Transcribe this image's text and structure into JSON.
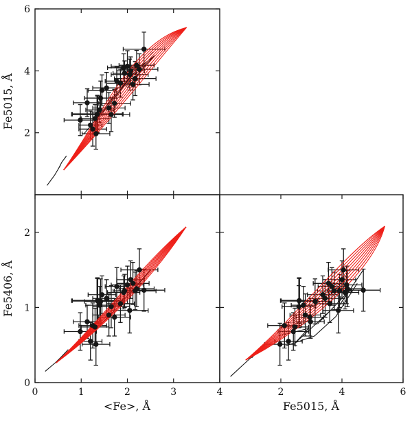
{
  "figure": {
    "background": "#ffffff",
    "marker_color": "#161616",
    "errorbar_color": "#1c1c1c",
    "model_red_color": "#ee2019",
    "model_black_color": "#161616",
    "axis_color": "#1a1a1a"
  },
  "chart_data": {
    "type": "scatter",
    "title": "",
    "description": "Triangle of index-index diagrams: Fe5015 vs <Fe>, Fe5406 vs <Fe>, Fe5406 vs Fe5015. Black filled circles with x/y error bars are measured objects; red curve bundle is the SSP model grid, thin black polylines are a second model track set.",
    "panels": [
      {
        "key": "tl",
        "x_field": "fe",
        "y_field": "fe5015",
        "xlabel": "",
        "ylabel": "Fe5015, Å",
        "xlim": [
          0,
          4
        ],
        "ylim": [
          0,
          6
        ],
        "xticks": [
          1,
          2,
          3
        ],
        "xtick_labels": [],
        "yticks": [
          2,
          4,
          6
        ],
        "ytick_labels": [
          "2",
          "4",
          "6"
        ]
      },
      {
        "key": "bl",
        "x_field": "fe",
        "y_field": "fe5406",
        "xlabel": "<Fe>, Å",
        "ylabel": "Fe5406, Å",
        "xlim": [
          0,
          4
        ],
        "ylim": [
          0,
          2.5
        ],
        "xticks": [
          0,
          1,
          2,
          3,
          4
        ],
        "xtick_labels": [
          "0",
          "1",
          "2",
          "3",
          "4"
        ],
        "yticks": [
          0,
          1,
          2
        ],
        "ytick_labels": [
          "0",
          "1",
          "2"
        ]
      },
      {
        "key": "br",
        "x_field": "fe5015",
        "y_field": "fe5406",
        "xlabel": "Fe5015, Å",
        "ylabel": "",
        "xlim": [
          0,
          6
        ],
        "ylim": [
          0,
          2.5
        ],
        "xticks": [
          2,
          4,
          6
        ],
        "xtick_labels": [
          "2",
          "4",
          "6"
        ],
        "yticks": [
          1,
          2
        ],
        "ytick_labels": []
      }
    ],
    "points": [
      {
        "fe": 2.36,
        "e_fe": 0.45,
        "fe5015": 4.7,
        "e_fe5015": 0.55,
        "fe5406": 1.23,
        "e_fe5406": 0.28
      },
      {
        "fe": 1.92,
        "e_fe": 0.35,
        "fe5015": 4.1,
        "e_fe5015": 0.45,
        "fe5406": 1.2,
        "e_fe5406": 0.22
      },
      {
        "fe": 2.26,
        "e_fe": 0.4,
        "fe5015": 4.05,
        "e_fe5015": 0.5,
        "fe5406": 1.5,
        "e_fe5406": 0.28
      },
      {
        "fe": 2.07,
        "e_fe": 0.3,
        "fe5015": 4.0,
        "e_fe5015": 0.45,
        "fe5406": 1.37,
        "e_fe5406": 0.25
      },
      {
        "fe": 1.94,
        "e_fe": 0.25,
        "fe5015": 3.92,
        "e_fe5015": 0.4,
        "fe5406": 1.22,
        "e_fe5406": 0.22
      },
      {
        "fe": 2.17,
        "e_fe": 0.45,
        "fe5015": 3.75,
        "e_fe5015": 0.55,
        "fe5406": 1.22,
        "e_fe5406": 0.25
      },
      {
        "fe": 1.77,
        "e_fe": 0.25,
        "fe5015": 3.67,
        "e_fe5015": 0.45,
        "fe5406": 1.28,
        "e_fe5406": 0.25
      },
      {
        "fe": 2.12,
        "e_fe": 0.35,
        "fe5015": 3.56,
        "e_fe5015": 0.5,
        "fe5406": 1.32,
        "e_fe5406": 0.28
      },
      {
        "fe": 2.05,
        "e_fe": 0.4,
        "fe5015": 3.88,
        "e_fe5015": 0.5,
        "fe5406": 0.96,
        "e_fe5406": 0.3
      },
      {
        "fe": 1.45,
        "e_fe": 0.3,
        "fe5015": 3.37,
        "e_fe5015": 0.5,
        "fe5406": 1.17,
        "e_fe5406": 0.25
      },
      {
        "fe": 1.42,
        "e_fe": 0.35,
        "fe5015": 3.12,
        "e_fe5015": 0.55,
        "fe5406": 1.08,
        "e_fe5406": 0.3
      },
      {
        "fe": 1.13,
        "e_fe": 0.3,
        "fe5015": 2.97,
        "e_fe5015": 0.45,
        "fe5406": 0.81,
        "e_fe5406": 0.22
      },
      {
        "fe": 1.4,
        "e_fe": 0.3,
        "fe5015": 2.74,
        "e_fe5015": 0.4,
        "fe5406": 1.03,
        "e_fe5406": 0.25
      },
      {
        "fe": 1.65,
        "e_fe": 0.4,
        "fe5015": 2.59,
        "e_fe5015": 0.55,
        "fe5406": 1.01,
        "e_fe5406": 0.28
      },
      {
        "fe": 1.3,
        "e_fe": 0.3,
        "fe5015": 2.46,
        "e_fe5015": 0.45,
        "fe5406": 0.74,
        "e_fe5406": 0.25
      },
      {
        "fe": 0.98,
        "e_fe": 0.35,
        "fe5015": 2.41,
        "e_fe5015": 0.5,
        "fe5406": 0.68,
        "e_fe5406": 0.25
      },
      {
        "fe": 1.25,
        "e_fe": 0.3,
        "fe5015": 2.12,
        "e_fe5015": 0.55,
        "fe5406": 0.76,
        "e_fe5406": 0.3
      },
      {
        "fe": 1.32,
        "e_fe": 0.3,
        "fe5015": 1.97,
        "e_fe5015": 0.5,
        "fe5406": 0.51,
        "e_fe5406": 0.28
      },
      {
        "fe": 1.72,
        "e_fe": 0.35,
        "fe5015": 2.95,
        "e_fe5015": 0.45,
        "fe5406": 0.87,
        "e_fe5406": 0.25
      },
      {
        "fe": 1.35,
        "e_fe": 0.55,
        "fe5015": 2.6,
        "e_fe5015": 0.6,
        "fe5406": 1.09,
        "e_fe5406": 0.3,
        "bold": true
      },
      {
        "fe": 1.55,
        "e_fe": 0.3,
        "fe5015": 3.45,
        "e_fe5015": 0.5,
        "fe5406": 1.12,
        "e_fe5406": 0.25
      },
      {
        "fe": 1.85,
        "e_fe": 0.3,
        "fe5015": 3.6,
        "e_fe5015": 0.45,
        "fe5406": 1.05,
        "e_fe5406": 0.25
      },
      {
        "fe": 2.0,
        "e_fe": 0.35,
        "fe5015": 4.15,
        "e_fe5015": 0.5,
        "fe5406": 1.3,
        "e_fe5406": 0.25
      },
      {
        "fe": 1.2,
        "e_fe": 0.25,
        "fe5015": 2.25,
        "e_fe5015": 0.45,
        "fe5406": 0.55,
        "e_fe5406": 0.25
      },
      {
        "fe": 1.6,
        "e_fe": 0.35,
        "fe5015": 2.8,
        "e_fe5015": 0.5,
        "fe5406": 0.9,
        "e_fe5406": 0.28
      },
      {
        "fe": 2.2,
        "e_fe": 0.38,
        "fe5015": 4.18,
        "e_fe5015": 0.48,
        "fe5406": 1.25,
        "e_fe5406": 0.24
      }
    ],
    "model_grid": {
      "red_bundle": {
        "tl": {
          "count": 9,
          "p0": [
            0.62,
            0.8
          ],
          "c1_from": [
            1.42,
            2.5
          ],
          "c1_to": [
            1.58,
            2.3
          ],
          "c2_from": [
            2.12,
            4.98
          ],
          "c2_to": [
            2.7,
            4.4
          ],
          "p2": [
            3.28,
            5.4
          ]
        },
        "bl": {
          "count": 9,
          "p0": [
            0.45,
            0.26
          ],
          "c1_from": [
            1.45,
            0.84
          ],
          "c1_to": [
            1.55,
            0.76
          ],
          "c2_from": [
            2.33,
            1.58
          ],
          "c2_to": [
            2.58,
            1.42
          ],
          "p2": [
            3.27,
            2.07
          ]
        },
        "br": {
          "count": 9,
          "p0": [
            0.85,
            0.3
          ],
          "c1_from": [
            2.45,
            0.85
          ],
          "c1_to": [
            2.75,
            0.7
          ],
          "c2_from": [
            4.1,
            1.72
          ],
          "c2_to": [
            5.0,
            1.45
          ],
          "p2": [
            5.4,
            2.08
          ]
        }
      },
      "black_tracks": {
        "tl": [
          [
            [
              0.26,
              0.3
            ],
            [
              0.42,
              0.62
            ],
            [
              0.55,
              0.95
            ],
            [
              0.5,
              0.82
            ],
            [
              0.58,
              1.05
            ],
            [
              0.68,
              1.25
            ]
          ],
          [
            [
              1.05,
              1.95
            ],
            [
              1.6,
              2.9
            ],
            [
              2.1,
              3.85
            ],
            [
              2.55,
              4.6
            ]
          ],
          [
            [
              1.25,
              2.3
            ],
            [
              1.75,
              3.25
            ],
            [
              2.25,
              4.1
            ],
            [
              2.6,
              4.5
            ],
            [
              2.4,
              4.2
            ],
            [
              2.0,
              3.45
            ]
          ]
        ],
        "bl": [
          [
            [
              0.22,
              0.15
            ],
            [
              0.45,
              0.27
            ],
            [
              0.6,
              0.36
            ],
            [
              0.55,
              0.33
            ],
            [
              0.72,
              0.44
            ]
          ],
          [
            [
              1.0,
              0.55
            ],
            [
              1.6,
              0.88
            ],
            [
              2.15,
              1.25
            ],
            [
              2.5,
              1.5
            ]
          ]
        ],
        "br": [
          [
            [
              0.35,
              0.08
            ],
            [
              0.8,
              0.25
            ],
            [
              1.15,
              0.38
            ],
            [
              1.05,
              0.33
            ],
            [
              1.45,
              0.5
            ]
          ],
          [
            [
              1.9,
              0.62
            ],
            [
              2.9,
              0.72
            ],
            [
              2.45,
              0.52
            ],
            [
              3.6,
              0.95
            ],
            [
              3.2,
              0.78
            ],
            [
              4.3,
              1.25
            ],
            [
              3.9,
              1.02
            ],
            [
              4.7,
              1.5
            ]
          ],
          [
            [
              2.1,
              0.48
            ],
            [
              3.1,
              0.62
            ],
            [
              3.8,
              0.88
            ],
            [
              4.5,
              1.32
            ]
          ]
        ]
      }
    },
    "legend": null,
    "grid": false
  }
}
